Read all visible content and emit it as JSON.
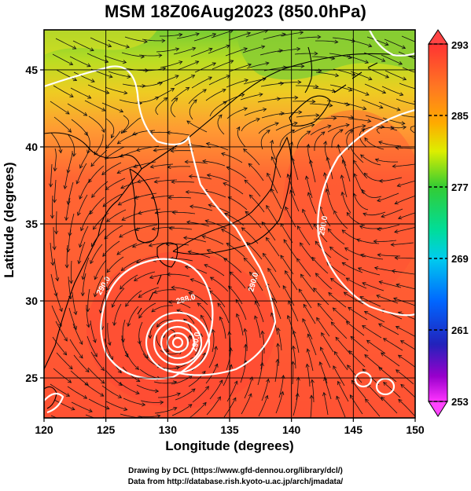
{
  "title": "MSM 18Z06Aug2023 (850.0hPa)",
  "axes": {
    "xlabel": "Longitude (degrees)",
    "ylabel": "Latitude  (degrees)",
    "x_ticks": [
      "120",
      "125",
      "130",
      "135",
      "140",
      "145",
      "150"
    ],
    "y_ticks": [
      "25",
      "30",
      "35",
      "40",
      "45"
    ],
    "lon_range": [
      120,
      150
    ],
    "lat_range": [
      22.4,
      47.6
    ]
  },
  "colorbar": {
    "labels": [
      "293",
      "285",
      "277",
      "269",
      "261",
      "253"
    ],
    "min": 253,
    "max": 293,
    "colors": [
      "#ff33ff",
      "#9900cc",
      "#2222cc",
      "#0077ff",
      "#00ccee",
      "#00dd88",
      "#22cc22",
      "#88dd11",
      "#ddee00",
      "#ffaa00",
      "#ff6622",
      "#ff3333"
    ]
  },
  "contour_labels": [
    "288.0",
    "290.0",
    "290.0",
    "290.0",
    "290.0"
  ],
  "credits": {
    "line1": "Drawing by DCL (https://www.gfd-dennou.org/library/dcl/)",
    "line2": "Data from http://database.rish.kyoto-u.ac.jp/arch/jmadata/"
  },
  "chart_data": {
    "type": "heatmap",
    "title": "MSM 18Z06Aug2023 (850.0hPa)",
    "xlabel": "Longitude (degrees)",
    "ylabel": "Latitude  (degrees)",
    "xlim": [
      120,
      150
    ],
    "ylim": [
      22.4,
      47.6
    ],
    "colorbar_range": [
      253,
      293
    ],
    "typhoon_center": {
      "lon": 130.3,
      "lat": 27.8
    }
  }
}
